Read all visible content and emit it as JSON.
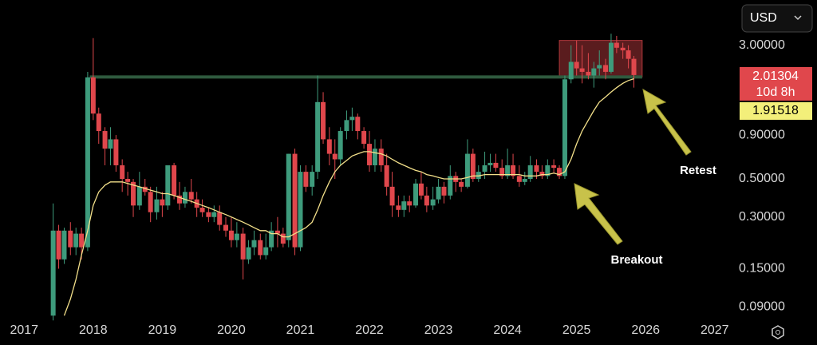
{
  "chart_data": {
    "type": "candlestick",
    "currency": "USD",
    "log": true,
    "grid": false,
    "xlim": [
      2016.65,
      2027.28
    ],
    "ylim": [
      0.076,
      5.5
    ],
    "xticks": [
      2017,
      2018,
      2019,
      2020,
      2021,
      2022,
      2023,
      2024,
      2025,
      2026,
      2027
    ],
    "yticks": [
      {
        "value": 3,
        "label": "3.00000"
      },
      {
        "value": 0.9,
        "label": "0.90000"
      },
      {
        "value": 0.5,
        "label": "0.50000"
      },
      {
        "value": 0.3,
        "label": "0.30000"
      },
      {
        "value": 0.15,
        "label": "0.15000"
      },
      {
        "value": 0.09,
        "label": "0.09000"
      }
    ],
    "up_color": "#3e9b7c",
    "down_color": "#e0474c",
    "x": [
      2017.42,
      2017.5,
      2017.58,
      2017.67,
      2017.75,
      2017.83,
      2017.92,
      2018,
      2018.08,
      2018.17,
      2018.25,
      2018.33,
      2018.42,
      2018.5,
      2018.58,
      2018.67,
      2018.75,
      2018.83,
      2018.92,
      2019,
      2019.08,
      2019.17,
      2019.25,
      2019.33,
      2019.42,
      2019.5,
      2019.58,
      2019.67,
      2019.75,
      2019.83,
      2019.92,
      2020,
      2020.08,
      2020.17,
      2020.25,
      2020.33,
      2020.42,
      2020.5,
      2020.58,
      2020.67,
      2020.75,
      2020.83,
      2020.92,
      2021,
      2021.08,
      2021.17,
      2021.25,
      2021.33,
      2021.42,
      2021.5,
      2021.58,
      2021.67,
      2021.75,
      2021.83,
      2021.92,
      2022,
      2022.08,
      2022.17,
      2022.25,
      2022.33,
      2022.42,
      2022.5,
      2022.58,
      2022.67,
      2022.75,
      2022.83,
      2022.92,
      2023,
      2023.08,
      2023.17,
      2023.25,
      2023.33,
      2023.42,
      2023.5,
      2023.58,
      2023.67,
      2023.75,
      2023.83,
      2023.92,
      2024,
      2024.08,
      2024.17,
      2024.25,
      2024.33,
      2024.42,
      2024.5,
      2024.58,
      2024.67,
      2024.75,
      2024.83,
      2024.92,
      2025,
      2025.08,
      2025.17,
      2025.25,
      2025.33,
      2025.42,
      2025.5,
      2025.58,
      2025.67,
      2025.75,
      2025.83
    ],
    "open": [
      0.08,
      0.25,
      0.17,
      0.25,
      0.2,
      0.24,
      0.2,
      1.95,
      1.2,
      0.95,
      0.75,
      0.85,
      0.6,
      0.5,
      0.48,
      0.35,
      0.45,
      0.42,
      0.32,
      0.38,
      0.35,
      0.6,
      0.4,
      0.36,
      0.42,
      0.38,
      0.34,
      0.32,
      0.3,
      0.32,
      0.27,
      0.25,
      0.22,
      0.24,
      0.17,
      0.2,
      0.22,
      0.18,
      0.2,
      0.25,
      0.24,
      0.22,
      0.7,
      0.2,
      0.55,
      0.45,
      0.55,
      1.4,
      0.85,
      0.7,
      0.65,
      0.95,
      1.1,
      1.15,
      0.95,
      0.8,
      0.6,
      0.75,
      0.6,
      0.45,
      0.35,
      0.33,
      0.37,
      0.35,
      0.47,
      0.4,
      0.35,
      0.38,
      0.45,
      0.4,
      0.52,
      0.48,
      0.45,
      0.7,
      0.5,
      0.55,
      0.6,
      0.62,
      0.58,
      0.52,
      0.6,
      0.52,
      0.48,
      0.5,
      0.6,
      0.55,
      0.52,
      0.6,
      0.58,
      0.52,
      1.9,
      2.4,
      2.2,
      2.1,
      2.0,
      2.2,
      2.3,
      2.1,
      3.1,
      2.9,
      2.8,
      2.5
    ],
    "high": [
      0.36,
      0.27,
      0.26,
      0.28,
      0.26,
      0.26,
      2.1,
      3.3,
      1.3,
      1.0,
      1.0,
      0.9,
      0.65,
      0.55,
      0.5,
      0.55,
      0.5,
      0.45,
      0.45,
      0.42,
      0.6,
      0.62,
      0.48,
      0.45,
      0.5,
      0.42,
      0.38,
      0.34,
      0.35,
      0.35,
      0.3,
      0.3,
      0.28,
      0.26,
      0.22,
      0.25,
      0.24,
      0.24,
      0.28,
      0.3,
      0.26,
      0.7,
      0.75,
      0.6,
      0.6,
      0.6,
      2.0,
      1.6,
      1.0,
      0.85,
      1.0,
      1.25,
      1.3,
      1.2,
      1.0,
      0.95,
      0.85,
      0.85,
      0.7,
      0.55,
      0.4,
      0.4,
      0.4,
      0.5,
      0.55,
      0.45,
      0.45,
      0.5,
      0.48,
      0.6,
      0.55,
      0.5,
      0.85,
      0.75,
      0.6,
      0.72,
      0.7,
      0.7,
      0.65,
      0.75,
      0.7,
      0.6,
      0.55,
      0.68,
      0.65,
      0.6,
      0.65,
      0.65,
      0.6,
      2.0,
      3.0,
      3.2,
      3.0,
      2.7,
      2.4,
      2.8,
      2.5,
      3.5,
      3.4,
      3.1,
      3.0,
      2.6
    ],
    "low": [
      0.075,
      0.15,
      0.16,
      0.18,
      0.18,
      0.17,
      0.19,
      1.1,
      0.8,
      0.6,
      0.6,
      0.55,
      0.42,
      0.4,
      0.3,
      0.33,
      0.4,
      0.28,
      0.29,
      0.3,
      0.33,
      0.38,
      0.33,
      0.34,
      0.36,
      0.3,
      0.3,
      0.28,
      0.28,
      0.25,
      0.23,
      0.2,
      0.2,
      0.13,
      0.16,
      0.18,
      0.17,
      0.17,
      0.19,
      0.2,
      0.2,
      0.2,
      0.18,
      0.19,
      0.42,
      0.4,
      0.5,
      0.8,
      0.6,
      0.5,
      0.6,
      0.85,
      0.95,
      0.85,
      0.75,
      0.55,
      0.55,
      0.55,
      0.4,
      0.3,
      0.3,
      0.3,
      0.32,
      0.34,
      0.38,
      0.32,
      0.33,
      0.36,
      0.36,
      0.38,
      0.42,
      0.42,
      0.44,
      0.48,
      0.48,
      0.5,
      0.55,
      0.55,
      0.5,
      0.5,
      0.5,
      0.45,
      0.46,
      0.48,
      0.5,
      0.5,
      0.5,
      0.54,
      0.5,
      0.5,
      1.8,
      2.0,
      1.8,
      1.9,
      1.7,
      2.0,
      1.9,
      2.05,
      2.7,
      2.5,
      2.2,
      1.7
    ],
    "close": [
      0.25,
      0.17,
      0.25,
      0.2,
      0.24,
      0.2,
      1.95,
      1.2,
      0.95,
      0.75,
      0.85,
      0.6,
      0.5,
      0.48,
      0.35,
      0.45,
      0.42,
      0.32,
      0.38,
      0.35,
      0.6,
      0.4,
      0.36,
      0.42,
      0.38,
      0.34,
      0.32,
      0.3,
      0.32,
      0.27,
      0.25,
      0.22,
      0.24,
      0.17,
      0.2,
      0.22,
      0.18,
      0.2,
      0.25,
      0.24,
      0.21,
      0.7,
      0.2,
      0.55,
      0.45,
      0.55,
      1.4,
      0.85,
      0.7,
      0.65,
      0.95,
      1.1,
      1.15,
      0.95,
      0.8,
      0.6,
      0.75,
      0.6,
      0.45,
      0.35,
      0.33,
      0.37,
      0.35,
      0.47,
      0.4,
      0.35,
      0.38,
      0.45,
      0.4,
      0.52,
      0.48,
      0.45,
      0.7,
      0.5,
      0.55,
      0.6,
      0.62,
      0.58,
      0.52,
      0.6,
      0.52,
      0.48,
      0.5,
      0.6,
      0.55,
      0.52,
      0.6,
      0.58,
      0.52,
      1.9,
      2.4,
      2.2,
      2.1,
      2.0,
      2.2,
      2.3,
      2.1,
      3.1,
      2.9,
      2.8,
      2.5,
      2.01304
    ],
    "ma": {
      "color": "#f3e08a",
      "values": [
        null,
        null,
        0.08,
        0.1,
        0.13,
        0.18,
        0.25,
        0.35,
        0.42,
        0.46,
        0.48,
        0.48,
        0.48,
        0.47,
        0.46,
        0.45,
        0.44,
        0.43,
        0.42,
        0.41,
        0.41,
        0.4,
        0.39,
        0.38,
        0.37,
        0.36,
        0.35,
        0.34,
        0.33,
        0.32,
        0.31,
        0.3,
        0.29,
        0.28,
        0.27,
        0.26,
        0.25,
        0.25,
        0.24,
        0.24,
        0.23,
        0.23,
        0.24,
        0.25,
        0.26,
        0.28,
        0.33,
        0.4,
        0.48,
        0.55,
        0.6,
        0.64,
        0.68,
        0.7,
        0.72,
        0.72,
        0.71,
        0.7,
        0.68,
        0.65,
        0.62,
        0.6,
        0.58,
        0.56,
        0.55,
        0.53,
        0.52,
        0.51,
        0.5,
        0.5,
        0.5,
        0.5,
        0.51,
        0.52,
        0.52,
        0.53,
        0.53,
        0.53,
        0.53,
        0.53,
        0.53,
        0.53,
        0.52,
        0.52,
        0.52,
        0.53,
        0.53,
        0.54,
        0.53,
        0.55,
        0.65,
        0.8,
        0.95,
        1.1,
        1.25,
        1.4,
        1.5,
        1.6,
        1.7,
        1.8,
        1.87,
        1.91518
      ]
    },
    "resistance": {
      "value": 1.96,
      "x": [
        2017.95,
        2025.95
      ],
      "color": "#2f5a3e"
    },
    "zone": {
      "y": [
        1.96,
        3.2
      ],
      "x": [
        2024.75,
        2025.95
      ],
      "color": "#e0474c"
    },
    "countdown": "10d 8h",
    "annotations": [
      "Retest",
      "Breakout"
    ]
  }
}
